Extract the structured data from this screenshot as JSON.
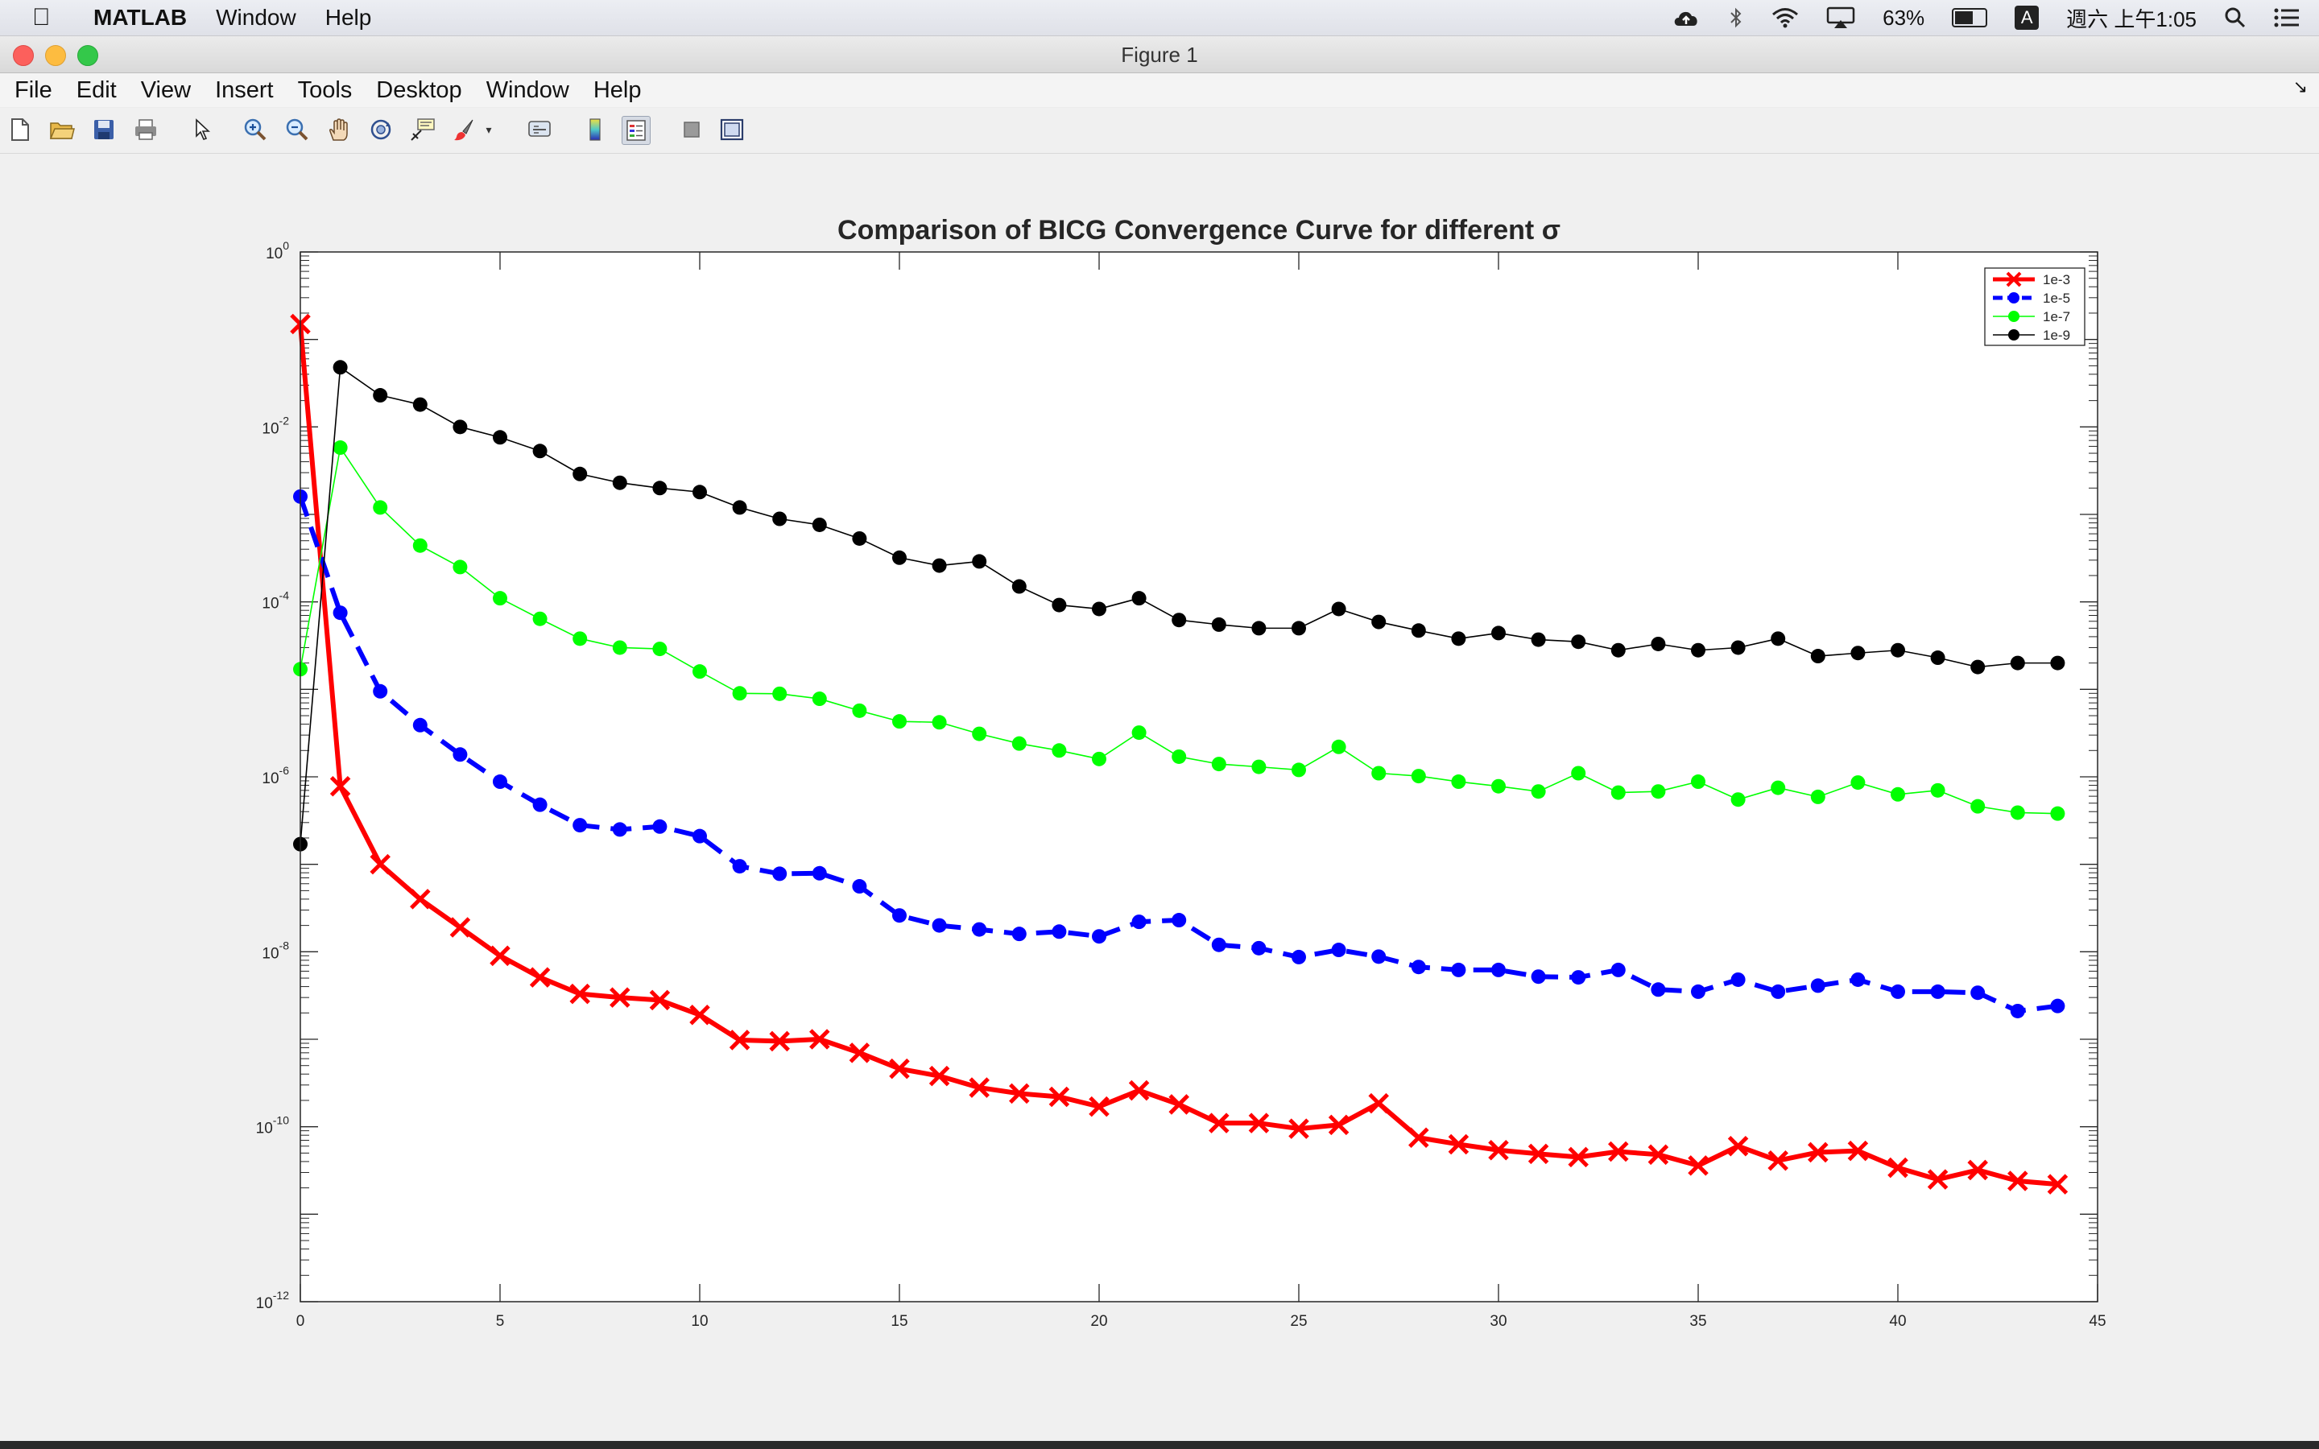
{
  "menubar": {
    "app_name": "MATLAB",
    "items": [
      "Window",
      "Help"
    ],
    "battery": "63%",
    "clock": "週六 上午1:05",
    "input_badge": "A"
  },
  "window": {
    "title": "Figure 1"
  },
  "figure_menu": [
    "File",
    "Edit",
    "View",
    "Insert",
    "Tools",
    "Desktop",
    "Window",
    "Help"
  ],
  "toolbar": {
    "icons": [
      "new-figure-icon",
      "open-file-icon",
      "save-icon",
      "print-icon",
      "edit-plot-arrow-icon",
      "zoom-in-icon",
      "zoom-out-icon",
      "pan-hand-icon",
      "rotate-3d-icon",
      "data-cursor-icon",
      "brush-icon",
      "link-plot-icon",
      "colorbar-icon",
      "legend-icon",
      "hide-plot-tools-icon",
      "show-plot-tools-icon"
    ]
  },
  "colors": {
    "s1": "#ff0000",
    "s2": "#0000ff",
    "s3": "#00ff00",
    "s4": "#000000"
  },
  "chart_data": {
    "type": "line",
    "title": "Comparison of BICG Convergence Curve for different σ",
    "xlabel": "",
    "ylabel": "",
    "xlim": [
      0,
      45
    ],
    "ylim": [
      1e-12,
      1
    ],
    "yscale": "log",
    "x_ticks": [
      "0",
      "5",
      "10",
      "15",
      "20",
      "25",
      "30",
      "35",
      "40",
      "45"
    ],
    "y_ticks": [
      {
        "base": "10",
        "exp": "0"
      },
      {
        "base": "10",
        "exp": "-2"
      },
      {
        "base": "10",
        "exp": "-4"
      },
      {
        "base": "10",
        "exp": "-6"
      },
      {
        "base": "10",
        "exp": "-8"
      },
      {
        "base": "10",
        "exp": "-10"
      },
      {
        "base": "10",
        "exp": "-12"
      }
    ],
    "legend_position": "top-right",
    "grid": false,
    "series": [
      {
        "name": "1e-3",
        "marker": "x",
        "style": "solid",
        "color": "#ff0000",
        "values": [
          0.15,
          7.8e-07,
          1e-07,
          4e-08,
          1.9e-08,
          9e-09,
          5.1e-09,
          3.3e-09,
          3e-09,
          2.8e-09,
          1.9e-09,
          9.8e-10,
          9.5e-10,
          1e-09,
          7e-10,
          4.6e-10,
          3.8e-10,
          2.8e-10,
          2.4e-10,
          2.2e-10,
          1.7e-10,
          2.6e-10,
          1.8e-10,
          1.1e-10,
          1.1e-10,
          9.5e-11,
          1.05e-10,
          1.85e-10,
          7.5e-11,
          6.3e-11,
          5.4e-11,
          4.9e-11,
          4.5e-11,
          5.2e-11,
          4.8e-11,
          3.6e-11,
          6e-11,
          4.1e-11,
          5.1e-11,
          5.3e-11,
          3.4e-11,
          2.5e-11,
          3.2e-11,
          2.4e-11,
          2.2e-11
        ]
      },
      {
        "name": "1e-5",
        "marker": "o",
        "style": "dashed",
        "color": "#0000ff",
        "values": [
          0.0016,
          7.5e-05,
          9.5e-06,
          3.9e-06,
          1.8e-06,
          8.8e-07,
          4.8e-07,
          2.8e-07,
          2.5e-07,
          2.7e-07,
          2.1e-07,
          9.5e-08,
          7.8e-08,
          7.9e-08,
          5.6e-08,
          2.6e-08,
          2e-08,
          1.8e-08,
          1.6e-08,
          1.7e-08,
          1.5e-08,
          2.2e-08,
          2.3e-08,
          1.2e-08,
          1.1e-08,
          8.7e-09,
          1.05e-08,
          8.8e-09,
          6.7e-09,
          6.2e-09,
          6.2e-09,
          5.2e-09,
          5.1e-09,
          6.2e-09,
          3.7e-09,
          3.5e-09,
          4.8e-09,
          3.5e-09,
          4.1e-09,
          4.8e-09,
          3.5e-09,
          3.5e-09,
          3.4e-09,
          2.1e-09,
          2.4e-09
        ]
      },
      {
        "name": "1e-7",
        "marker": "o",
        "style": "solid",
        "color": "#00ff00",
        "values": [
          1.7e-05,
          0.0058,
          0.0012,
          0.00044,
          0.00025,
          0.00011,
          6.4e-05,
          3.8e-05,
          3e-05,
          2.9e-05,
          1.6e-05,
          9e-06,
          8.9e-06,
          7.8e-06,
          5.7e-06,
          4.3e-06,
          4.2e-06,
          3.1e-06,
          2.4e-06,
          2e-06,
          1.6e-06,
          3.2e-06,
          1.7e-06,
          1.4e-06,
          1.3e-06,
          1.2e-06,
          2.2e-06,
          1.1e-06,
          1.02e-06,
          8.8e-07,
          7.8e-07,
          6.8e-07,
          1.1e-06,
          6.6e-07,
          6.8e-07,
          8.8e-07,
          5.5e-07,
          7.5e-07,
          5.9e-07,
          8.6e-07,
          6.3e-07,
          7e-07,
          4.6e-07,
          3.9e-07,
          3.8e-07
        ]
      },
      {
        "name": "1e-9",
        "marker": "o",
        "style": "solid",
        "color": "#000000",
        "values": [
          1.7e-07,
          0.048,
          0.023,
          0.018,
          0.01,
          0.0076,
          0.0053,
          0.0029,
          0.0023,
          0.002,
          0.0018,
          0.0012,
          0.00089,
          0.00076,
          0.00053,
          0.00032,
          0.00026,
          0.00029,
          0.00015,
          9.2e-05,
          8.3e-05,
          0.00011,
          6.2e-05,
          5.5e-05,
          5e-05,
          5e-05,
          8.3e-05,
          5.9e-05,
          4.7e-05,
          3.8e-05,
          4.4e-05,
          3.7e-05,
          3.5e-05,
          2.8e-05,
          3.3e-05,
          2.8e-05,
          3e-05,
          3.8e-05,
          2.4e-05,
          2.6e-05,
          2.8e-05,
          2.3e-05,
          1.8e-05,
          2e-05,
          2e-05
        ]
      }
    ]
  }
}
